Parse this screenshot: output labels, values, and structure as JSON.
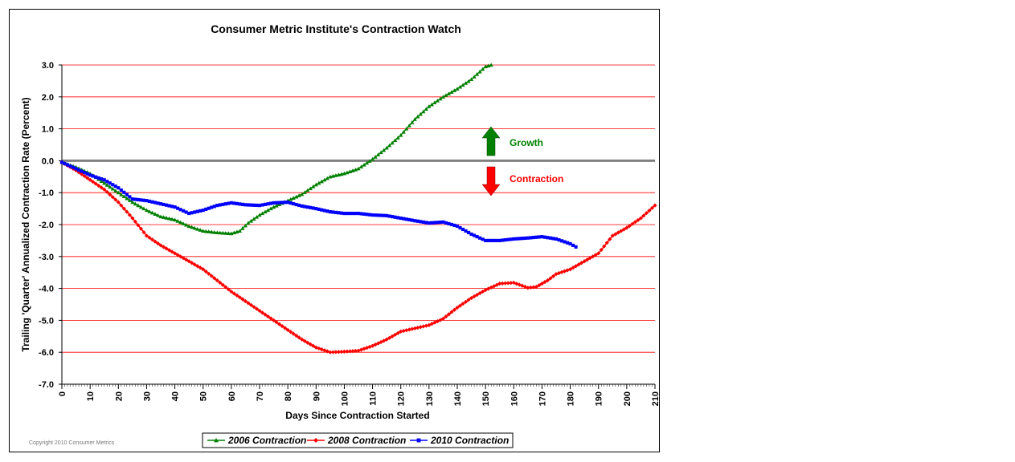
{
  "chart_data": {
    "type": "line",
    "title": "Consumer Metric Institute's Contraction Watch",
    "xlabel": "Days Since Contraction Started",
    "ylabel": "Trailing 'Quarter' Annualized Contraction Rate (Percent)",
    "xlim": [
      0,
      210
    ],
    "ylim": [
      -7.0,
      3.0
    ],
    "x_ticks": [
      "0",
      "10",
      "20",
      "30",
      "40",
      "50",
      "60",
      "70",
      "80",
      "90",
      "100",
      "110",
      "120",
      "130",
      "140",
      "150",
      "160",
      "170",
      "180",
      "190",
      "200",
      "210"
    ],
    "y_ticks": [
      "3.0",
      "2.0",
      "1.0",
      "0.0",
      "-1.0",
      "-2.0",
      "-3.0",
      "-4.0",
      "-5.0",
      "-6.0",
      "-7.0"
    ],
    "grid": "horizontal",
    "legend_placement": "bottom",
    "series": [
      {
        "name": "2006 Contraction",
        "color": "#008000",
        "marker": "triangle",
        "points": [
          [
            0,
            -0.05
          ],
          [
            5,
            -0.2
          ],
          [
            10,
            -0.4
          ],
          [
            15,
            -0.7
          ],
          [
            20,
            -1.0
          ],
          [
            25,
            -1.3
          ],
          [
            30,
            -1.55
          ],
          [
            35,
            -1.75
          ],
          [
            40,
            -1.85
          ],
          [
            45,
            -2.05
          ],
          [
            50,
            -2.2
          ],
          [
            55,
            -2.25
          ],
          [
            60,
            -2.28
          ],
          [
            63,
            -2.2
          ],
          [
            66,
            -1.95
          ],
          [
            70,
            -1.7
          ],
          [
            75,
            -1.45
          ],
          [
            80,
            -1.25
          ],
          [
            85,
            -1.05
          ],
          [
            90,
            -0.75
          ],
          [
            95,
            -0.5
          ],
          [
            100,
            -0.4
          ],
          [
            105,
            -0.25
          ],
          [
            110,
            0.05
          ],
          [
            115,
            0.4
          ],
          [
            120,
            0.8
          ],
          [
            125,
            1.3
          ],
          [
            130,
            1.7
          ],
          [
            135,
            2.0
          ],
          [
            140,
            2.25
          ],
          [
            145,
            2.55
          ],
          [
            150,
            2.95
          ],
          [
            152,
            3.0
          ]
        ]
      },
      {
        "name": "2008 Contraction",
        "color": "#ff0000",
        "marker": "diamond",
        "points": [
          [
            0,
            -0.05
          ],
          [
            5,
            -0.3
          ],
          [
            10,
            -0.6
          ],
          [
            15,
            -0.9
          ],
          [
            20,
            -1.3
          ],
          [
            25,
            -1.8
          ],
          [
            30,
            -2.35
          ],
          [
            35,
            -2.65
          ],
          [
            40,
            -2.9
          ],
          [
            45,
            -3.15
          ],
          [
            50,
            -3.4
          ],
          [
            55,
            -3.75
          ],
          [
            60,
            -4.1
          ],
          [
            65,
            -4.4
          ],
          [
            70,
            -4.7
          ],
          [
            75,
            -5.0
          ],
          [
            80,
            -5.3
          ],
          [
            85,
            -5.6
          ],
          [
            90,
            -5.85
          ],
          [
            95,
            -6.0
          ],
          [
            100,
            -5.98
          ],
          [
            105,
            -5.95
          ],
          [
            110,
            -5.8
          ],
          [
            115,
            -5.6
          ],
          [
            120,
            -5.35
          ],
          [
            125,
            -5.25
          ],
          [
            130,
            -5.15
          ],
          [
            135,
            -4.95
          ],
          [
            140,
            -4.6
          ],
          [
            145,
            -4.3
          ],
          [
            150,
            -4.05
          ],
          [
            155,
            -3.85
          ],
          [
            160,
            -3.82
          ],
          [
            165,
            -3.98
          ],
          [
            168,
            -3.95
          ],
          [
            172,
            -3.75
          ],
          [
            175,
            -3.55
          ],
          [
            180,
            -3.4
          ],
          [
            185,
            -3.15
          ],
          [
            190,
            -2.9
          ],
          [
            195,
            -2.35
          ],
          [
            200,
            -2.1
          ],
          [
            205,
            -1.8
          ],
          [
            210,
            -1.4
          ]
        ]
      },
      {
        "name": "2010 Contraction",
        "color": "#0000ff",
        "marker": "square",
        "points": [
          [
            0,
            -0.05
          ],
          [
            5,
            -0.25
          ],
          [
            10,
            -0.45
          ],
          [
            15,
            -0.6
          ],
          [
            20,
            -0.85
          ],
          [
            25,
            -1.2
          ],
          [
            30,
            -1.25
          ],
          [
            35,
            -1.35
          ],
          [
            40,
            -1.45
          ],
          [
            45,
            -1.65
          ],
          [
            50,
            -1.55
          ],
          [
            55,
            -1.4
          ],
          [
            60,
            -1.32
          ],
          [
            65,
            -1.38
          ],
          [
            70,
            -1.4
          ],
          [
            75,
            -1.32
          ],
          [
            80,
            -1.3
          ],
          [
            85,
            -1.42
          ],
          [
            90,
            -1.5
          ],
          [
            95,
            -1.6
          ],
          [
            100,
            -1.65
          ],
          [
            105,
            -1.65
          ],
          [
            110,
            -1.7
          ],
          [
            115,
            -1.72
          ],
          [
            120,
            -1.8
          ],
          [
            125,
            -1.88
          ],
          [
            130,
            -1.95
          ],
          [
            135,
            -1.92
          ],
          [
            140,
            -2.05
          ],
          [
            145,
            -2.3
          ],
          [
            150,
            -2.5
          ],
          [
            155,
            -2.5
          ],
          [
            160,
            -2.45
          ],
          [
            165,
            -2.42
          ],
          [
            170,
            -2.38
          ],
          [
            175,
            -2.45
          ],
          [
            180,
            -2.6
          ],
          [
            182,
            -2.7
          ]
        ]
      }
    ],
    "annotations": [
      {
        "text": "Growth",
        "color": "#008000",
        "arrow": "up"
      },
      {
        "text": "Contraction",
        "color": "#ff0000",
        "arrow": "down"
      }
    ],
    "copyright": "Copyright 2010 Consumer Metrics"
  }
}
